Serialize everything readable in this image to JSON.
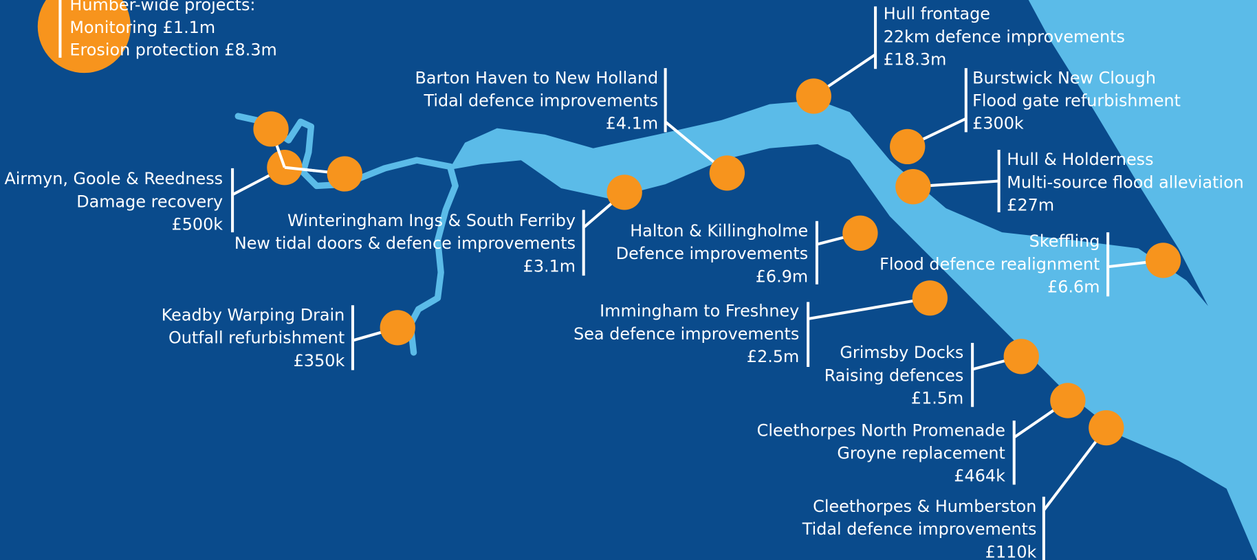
{
  "humber_wide": {
    "title": "Humber-wide projects:",
    "lines": [
      "Monitoring £1.1m",
      "Erosion protection £8.3m"
    ]
  },
  "projects": [
    {
      "name": "Hull frontage",
      "description": "22km defence improvements",
      "amount": "£18.3m"
    },
    {
      "name": "Barton Haven to New Holland",
      "description": "Tidal defence improvements",
      "amount": "£4.1m"
    },
    {
      "name": "Burstwick New Clough",
      "description": "Flood gate refurbishment",
      "amount": "£300k"
    },
    {
      "name": "Airmyn, Goole & Reedness",
      "description": "Damage recovery",
      "amount": "£500k"
    },
    {
      "name": "Hull & Holderness",
      "description": "Multi-source flood alleviation",
      "amount": "£27m"
    },
    {
      "name": "Winteringham Ings & South Ferriby",
      "description": "New tidal doors & defence improvements",
      "amount": "£3.1m"
    },
    {
      "name": "Halton & Killingholme",
      "description": "Defence improvements",
      "amount": "£6.9m"
    },
    {
      "name": "Skeffling",
      "description": "Flood defence realignment",
      "amount": "£6.6m"
    },
    {
      "name": "Keadby Warping Drain",
      "description": "Outfall refurbishment",
      "amount": "£350k"
    },
    {
      "name": "Immingham  to Freshney",
      "description": "Sea defence improvements",
      "amount": "£2.5m"
    },
    {
      "name": "Grimsby Docks",
      "description": "Raising defences",
      "amount": "£1.5m"
    },
    {
      "name": "Cleethorpes North Promenade",
      "description": "Groyne replacement",
      "amount": "£464k"
    },
    {
      "name": "Cleethorpes & Humberston",
      "description": "Tidal defence improvements",
      "amount": "£110k"
    }
  ]
}
